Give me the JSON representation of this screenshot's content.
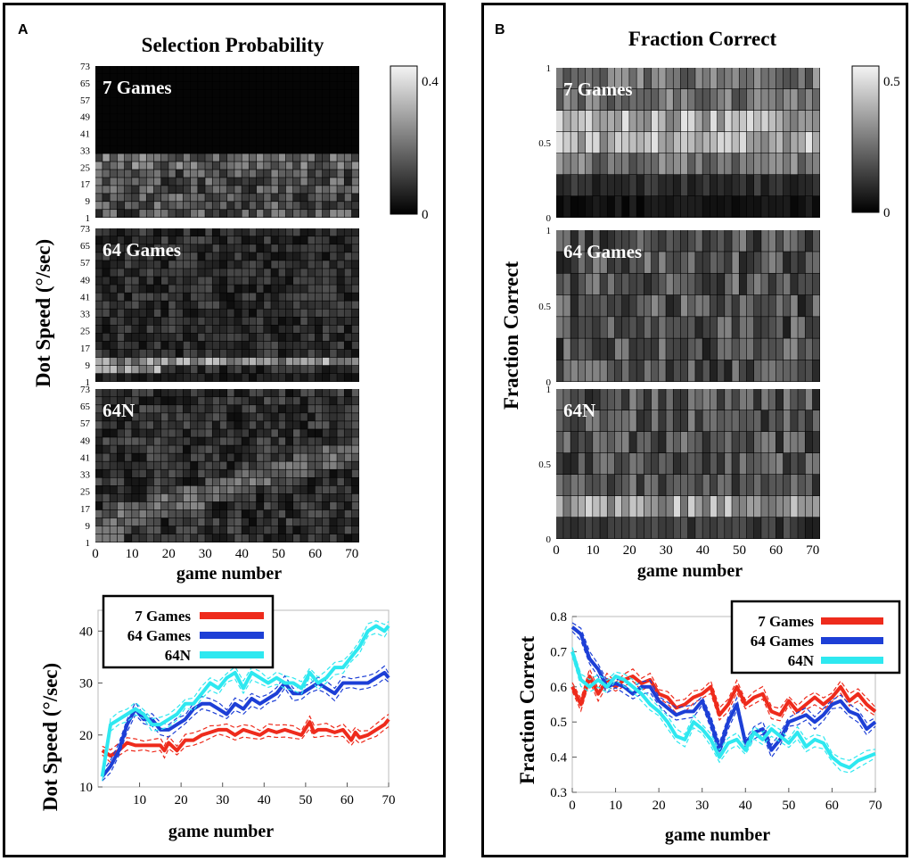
{
  "panels": [
    {
      "letter": "A",
      "title": "Selection Probability",
      "heatmap_ylabel": "Dot Speed (°/sec)",
      "heatmap_xlabel": "game number",
      "colorbar": {
        "max_label": "0.4",
        "min_label": "0",
        "max": 0.4,
        "min": 0
      },
      "line_ylabel": "Dot Speed (°/sec)",
      "line_xlabel": "game number"
    },
    {
      "letter": "B",
      "title": "Fraction Correct",
      "heatmap_ylabel": "Fraction Correct",
      "heatmap_xlabel": "game number",
      "colorbar": {
        "max_label": "0.5",
        "min_label": "0",
        "max": 0.5,
        "min": 0
      },
      "line_ylabel": "Fraction Correct",
      "line_xlabel": "game number"
    }
  ],
  "chart_data": [
    {
      "type": "heatmap",
      "panel": "A",
      "title": "Selection Probability",
      "ylabel": "Dot Speed (°/sec)",
      "xlabel": "game number",
      "x_ticks": [
        "0",
        "10",
        "20",
        "30",
        "40",
        "50",
        "60",
        "70"
      ],
      "y_ticks": [
        "1",
        "9",
        "17",
        "25",
        "33",
        "41",
        "49",
        "57",
        "65",
        "73"
      ],
      "colorbar": [
        0,
        0.4
      ],
      "subplots": [
        {
          "label": "7 Games",
          "rows": 19,
          "cols": 36,
          "pattern": "mass_low_speeds"
        },
        {
          "label": "64 Games",
          "rows": 19,
          "cols": 36,
          "pattern": "peak_speed_17"
        },
        {
          "label": "64N",
          "rows": 19,
          "cols": 36,
          "pattern": "diffuse_rising"
        }
      ]
    },
    {
      "type": "heatmap",
      "panel": "B",
      "title": "Fraction Correct",
      "ylabel": "Fraction Correct",
      "xlabel": "game number",
      "x_ticks": [
        "0",
        "10",
        "20",
        "30",
        "40",
        "50",
        "60",
        "70"
      ],
      "y_ticks": [
        "0",
        "0.5",
        "1"
      ],
      "colorbar": [
        0,
        0.5
      ],
      "subplots": [
        {
          "label": "7 Games",
          "rows": 7,
          "cols": 36,
          "pattern": "peak_mid_high"
        },
        {
          "label": "64 Games",
          "rows": 7,
          "cols": 36,
          "pattern": "uniform_mid"
        },
        {
          "label": "64N",
          "rows": 7,
          "cols": 36,
          "pattern": "peak_low"
        }
      ]
    },
    {
      "type": "line",
      "panel": "A",
      "xlabel": "game number",
      "ylabel": "Dot Speed (°/sec)",
      "xlim": [
        0,
        70
      ],
      "ylim": [
        10,
        44
      ],
      "x_ticks": [
        10,
        20,
        30,
        40,
        50,
        60,
        70
      ],
      "y_ticks": [
        10,
        20,
        30,
        40
      ],
      "legend_position": "top",
      "series": [
        {
          "name": "7 Games",
          "color": "#ee2b1c",
          "x": [
            1,
            3,
            5,
            7,
            9,
            11,
            13,
            15,
            16,
            17,
            19,
            21,
            23,
            25,
            27,
            29,
            31,
            33,
            35,
            37,
            39,
            41,
            43,
            45,
            47,
            49,
            51,
            52,
            53,
            55,
            57,
            59,
            61,
            62,
            63,
            65,
            67,
            69,
            70
          ],
          "y": [
            17,
            16,
            17,
            18.5,
            18,
            18,
            18,
            18,
            17,
            18.5,
            17,
            19,
            19,
            20,
            20.5,
            21,
            21,
            20,
            21,
            20.5,
            20,
            21,
            20.5,
            21,
            20.5,
            20,
            22.5,
            20.5,
            21,
            21,
            20.5,
            21,
            19,
            20.5,
            19.5,
            20,
            21,
            22,
            23
          ]
        },
        {
          "name": "64 Games",
          "color": "#1d3fd6",
          "x": [
            1,
            3,
            5,
            7,
            9,
            11,
            13,
            15,
            17,
            19,
            21,
            23,
            25,
            27,
            29,
            31,
            33,
            35,
            37,
            39,
            41,
            43,
            45,
            47,
            49,
            51,
            53,
            55,
            57,
            59,
            61,
            63,
            65,
            67,
            69,
            70
          ],
          "y": [
            12,
            14,
            17,
            22,
            25,
            23,
            23,
            21,
            21,
            22,
            23,
            25,
            26,
            26,
            25,
            24,
            26,
            25,
            27,
            26,
            27,
            28,
            30,
            28,
            28,
            29,
            30,
            29,
            28,
            30,
            30,
            30,
            30,
            31,
            32,
            31
          ]
        },
        {
          "name": "64N",
          "color": "#2ee8f0",
          "x": [
            1,
            3,
            5,
            7,
            9,
            11,
            13,
            15,
            17,
            19,
            21,
            23,
            25,
            27,
            29,
            31,
            33,
            35,
            37,
            39,
            41,
            43,
            45,
            47,
            49,
            51,
            53,
            55,
            57,
            59,
            61,
            63,
            65,
            67,
            69,
            70
          ],
          "y": [
            12,
            22,
            23,
            24,
            25,
            24,
            22,
            22,
            23,
            24,
            26,
            26,
            28,
            30,
            29,
            31,
            32,
            29,
            32,
            31,
            30,
            31,
            30,
            30,
            29,
            32,
            30,
            31,
            33,
            33,
            35,
            37,
            40,
            41,
            40,
            41
          ]
        }
      ]
    },
    {
      "type": "line",
      "panel": "B",
      "xlabel": "game number",
      "ylabel": "Fraction Correct",
      "xlim": [
        0,
        70
      ],
      "ylim": [
        0.3,
        0.8
      ],
      "x_ticks": [
        0,
        10,
        20,
        30,
        40,
        50,
        60,
        70
      ],
      "y_ticks": [
        0.3,
        0.4,
        0.5,
        0.6,
        0.7,
        0.8
      ],
      "legend_position": "top-right",
      "series": [
        {
          "name": "7 Games",
          "color": "#ee2b1c",
          "x": [
            0,
            2,
            4,
            6,
            8,
            10,
            12,
            14,
            16,
            18,
            20,
            22,
            24,
            26,
            28,
            30,
            32,
            34,
            36,
            38,
            40,
            42,
            44,
            46,
            48,
            50,
            52,
            54,
            56,
            58,
            60,
            62,
            64,
            66,
            68,
            70
          ],
          "y": [
            0.6,
            0.55,
            0.63,
            0.58,
            0.62,
            0.6,
            0.62,
            0.63,
            0.61,
            0.62,
            0.58,
            0.57,
            0.54,
            0.55,
            0.57,
            0.58,
            0.6,
            0.52,
            0.55,
            0.6,
            0.55,
            0.57,
            0.58,
            0.53,
            0.52,
            0.56,
            0.53,
            0.55,
            0.57,
            0.55,
            0.57,
            0.6,
            0.56,
            0.58,
            0.55,
            0.53
          ]
        },
        {
          "name": "64 Games",
          "color": "#1d3fd6",
          "x": [
            0,
            2,
            4,
            6,
            8,
            10,
            12,
            14,
            16,
            18,
            20,
            22,
            24,
            26,
            28,
            30,
            32,
            34,
            36,
            38,
            40,
            42,
            44,
            46,
            48,
            50,
            52,
            54,
            56,
            58,
            60,
            62,
            64,
            66,
            68,
            70
          ],
          "y": [
            0.77,
            0.75,
            0.68,
            0.65,
            0.6,
            0.61,
            0.6,
            0.58,
            0.6,
            0.6,
            0.56,
            0.54,
            0.52,
            0.53,
            0.53,
            0.56,
            0.5,
            0.42,
            0.5,
            0.55,
            0.44,
            0.47,
            0.48,
            0.42,
            0.45,
            0.5,
            0.51,
            0.52,
            0.5,
            0.52,
            0.55,
            0.56,
            0.53,
            0.52,
            0.48,
            0.5
          ]
        },
        {
          "name": "64N",
          "color": "#2ee8f0",
          "x": [
            0,
            2,
            4,
            6,
            8,
            10,
            12,
            14,
            16,
            18,
            20,
            22,
            24,
            26,
            28,
            30,
            32,
            34,
            36,
            38,
            40,
            42,
            44,
            46,
            48,
            50,
            52,
            54,
            56,
            58,
            60,
            62,
            64,
            66,
            68,
            70
          ],
          "y": [
            0.7,
            0.62,
            0.6,
            0.62,
            0.6,
            0.63,
            0.62,
            0.6,
            0.58,
            0.55,
            0.53,
            0.5,
            0.46,
            0.45,
            0.5,
            0.48,
            0.45,
            0.4,
            0.44,
            0.45,
            0.42,
            0.47,
            0.45,
            0.48,
            0.46,
            0.44,
            0.47,
            0.43,
            0.45,
            0.44,
            0.4,
            0.38,
            0.37,
            0.39,
            0.4,
            0.41
          ]
        }
      ]
    }
  ]
}
